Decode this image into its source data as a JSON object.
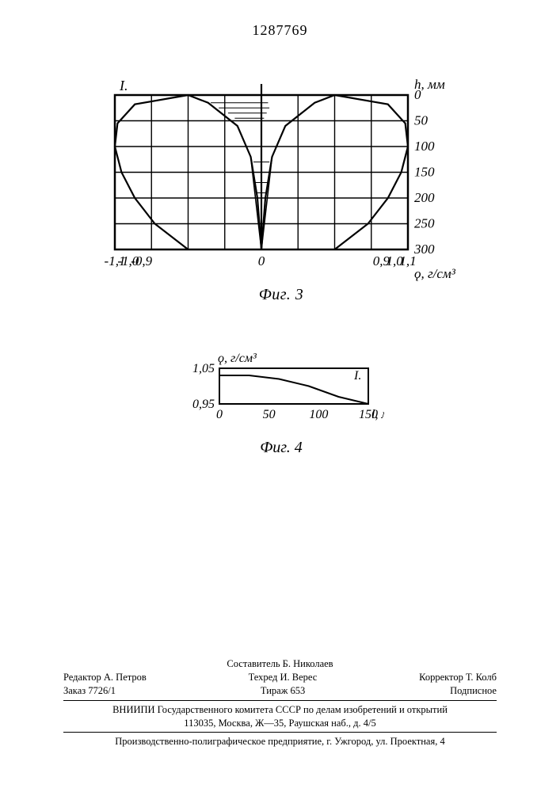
{
  "page_number": "1287769",
  "fig3": {
    "caption": "Фиг. 3",
    "y_axis_title": "h, мм",
    "x_axis_title": "ϙ, г/см³",
    "y_ticks": [
      "0",
      "50",
      "100",
      "150",
      "200",
      "250",
      "300"
    ],
    "x_ticks_left": [
      "-1,1",
      "-1,0",
      "-0,9"
    ],
    "x_ticks_right": [
      "0,9",
      "1,0",
      "1,1"
    ],
    "x_center": "0",
    "marker_I": "I.",
    "grid": {
      "x_count": 8,
      "y_count": 6,
      "grid_color": "#000000",
      "bg": "#ffffff"
    },
    "left_curve": [
      [
        -0.55,
        0
      ],
      [
        -0.95,
        18
      ],
      [
        -1.08,
        55
      ],
      [
        -1.1,
        100
      ],
      [
        -1.05,
        150
      ],
      [
        -0.95,
        200
      ],
      [
        -0.8,
        250
      ],
      [
        -0.55,
        300
      ]
    ],
    "right_curve": [
      [
        0.55,
        0
      ],
      [
        0.95,
        18
      ],
      [
        1.08,
        55
      ],
      [
        1.1,
        100
      ],
      [
        1.05,
        150
      ],
      [
        0.95,
        200
      ],
      [
        0.8,
        250
      ],
      [
        0.55,
        300
      ]
    ],
    "cone_outline": [
      [
        -0.55,
        0
      ],
      [
        -0.4,
        15
      ],
      [
        -0.18,
        60
      ],
      [
        -0.08,
        120
      ],
      [
        -0.03,
        200
      ],
      [
        0,
        300
      ],
      [
        0.03,
        200
      ],
      [
        0.08,
        120
      ],
      [
        0.18,
        60
      ],
      [
        0.4,
        15
      ],
      [
        0.55,
        0
      ]
    ],
    "cone_tip_inner": [
      [
        -0.08,
        120
      ],
      [
        0,
        300
      ],
      [
        0.08,
        120
      ]
    ],
    "hatch_lines": [
      [
        -0.38,
        15,
        0.05,
        15
      ],
      [
        -0.32,
        25,
        0.06,
        25
      ],
      [
        -0.25,
        35,
        0.04,
        35
      ],
      [
        -0.2,
        45,
        0.02,
        45
      ],
      [
        -0.06,
        130,
        0.06,
        130
      ],
      [
        -0.05,
        150,
        0.05,
        150
      ],
      [
        -0.05,
        170,
        0.05,
        170
      ],
      [
        -0.04,
        190,
        0.04,
        190
      ]
    ],
    "xlim": [
      -1.1,
      1.1
    ],
    "ylim": [
      0,
      300
    ],
    "line_width": 2.2
  },
  "fig4": {
    "caption": "Фиг. 4",
    "y_axis_title": "ϙ, г/см³",
    "x_axis_title": "l, мм",
    "x_ticks": [
      "0",
      "50",
      "100",
      "150"
    ],
    "y_ticks": [
      "0,95",
      "1,05"
    ],
    "marker_I": "I.",
    "curve": [
      [
        0,
        1.03
      ],
      [
        30,
        1.03
      ],
      [
        60,
        1.02
      ],
      [
        90,
        1.0
      ],
      [
        120,
        0.97
      ],
      [
        150,
        0.95
      ]
    ],
    "xlim": [
      0,
      150
    ],
    "ylim": [
      0.95,
      1.05
    ],
    "grid_color": "#000000",
    "line_width": 2
  },
  "footer": {
    "composer": "Составитель Б. Николаев",
    "editor": "Редактор А. Петров",
    "techred": "Техред И. Верес",
    "corrector": "Корректор Т. Колб",
    "order": "Заказ 7726/1",
    "tirazh": "Тираж  653",
    "podpis": "Подписное",
    "org1": "ВНИИПИ Государственного комитета СССР по делам изобретений и открытий",
    "addr1": "113035, Москва, Ж—35, Раушская наб., д. 4/5",
    "org2": "Производственно-полиграфическое предприятие, г. Ужгород, ул. Проектная, 4"
  }
}
